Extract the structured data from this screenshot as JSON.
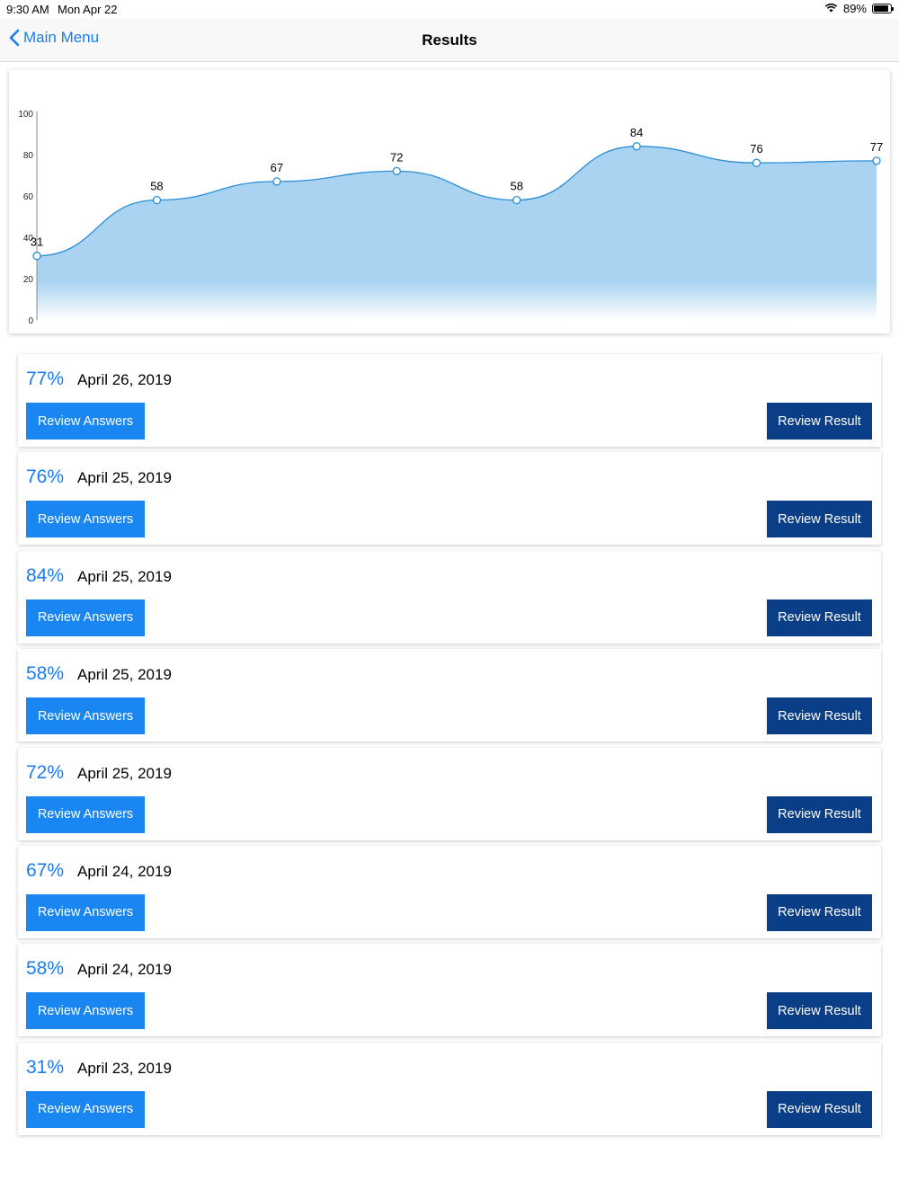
{
  "status_bar": {
    "time": "9:30 AM",
    "date": "Mon Apr 22",
    "battery": "89%"
  },
  "nav": {
    "back_label": "Main Menu",
    "title": "Results"
  },
  "chart_data": {
    "type": "area",
    "x": [
      1,
      2,
      3,
      4,
      5,
      6,
      7,
      8
    ],
    "series": [
      {
        "values": [
          31,
          58,
          67,
          72,
          58,
          84,
          76,
          77
        ]
      }
    ],
    "yticks": [
      "0",
      "20",
      "40",
      "60",
      "80",
      "100"
    ],
    "ylim": [
      0,
      100
    ],
    "grid": false,
    "legend": "none",
    "fill_color": "#a9d3f1",
    "line_color": "#2a8fd6"
  },
  "results": [
    {
      "score": "77%",
      "date": "April 26, 2019",
      "answers_label": "Review Answers",
      "result_label": "Review Result"
    },
    {
      "score": "76%",
      "date": "April 25, 2019",
      "answers_label": "Review Answers",
      "result_label": "Review Result"
    },
    {
      "score": "84%",
      "date": "April 25, 2019",
      "answers_label": "Review Answers",
      "result_label": "Review Result"
    },
    {
      "score": "58%",
      "date": "April 25, 2019",
      "answers_label": "Review Answers",
      "result_label": "Review Result"
    },
    {
      "score": "72%",
      "date": "April 25, 2019",
      "answers_label": "Review Answers",
      "result_label": "Review Result"
    },
    {
      "score": "67%",
      "date": "April 24, 2019",
      "answers_label": "Review Answers",
      "result_label": "Review Result"
    },
    {
      "score": "58%",
      "date": "April 24, 2019",
      "answers_label": "Review Answers",
      "result_label": "Review Result"
    },
    {
      "score": "31%",
      "date": "April 23, 2019",
      "answers_label": "Review Answers",
      "result_label": "Review Result"
    }
  ],
  "colors": {
    "accent": "#1a7cf0",
    "primary_button": "#1a86f2",
    "secondary_button": "#0a3e86"
  }
}
